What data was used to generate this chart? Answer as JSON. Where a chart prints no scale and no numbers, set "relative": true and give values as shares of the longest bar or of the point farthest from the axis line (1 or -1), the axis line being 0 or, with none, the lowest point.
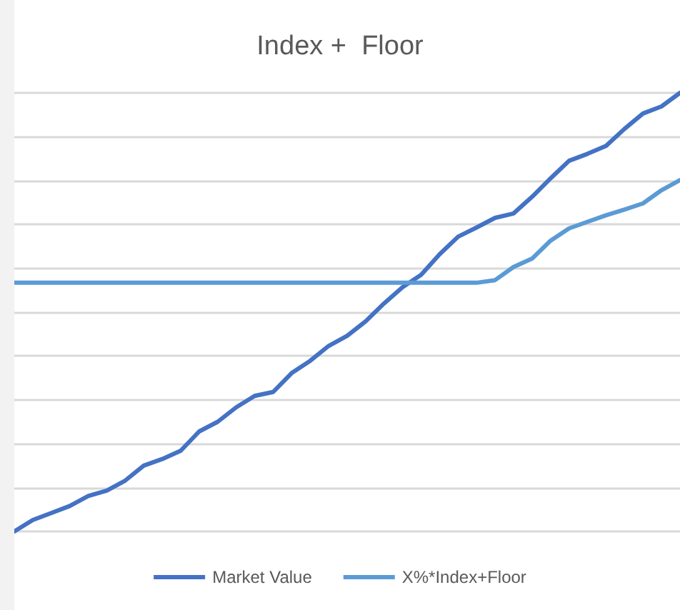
{
  "chart_data": {
    "type": "line",
    "title": "Index +  Floor",
    "relative": true,
    "grid": "y",
    "legend": "bottom",
    "marker": "none",
    "line_style": "solid",
    "categories": [
      null,
      null,
      null,
      null,
      null,
      null,
      null,
      null,
      null,
      null,
      null,
      null,
      null,
      null,
      null,
      null,
      null,
      null,
      null,
      null,
      null,
      null,
      null,
      null,
      null,
      null,
      null,
      null,
      null,
      null,
      null,
      null,
      null,
      null,
      null,
      null,
      null
    ],
    "series": [
      {
        "name": "Market Value",
        "color": "#4472c4",
        "values": [
          0,
          0.026,
          0.042,
          0.058,
          0.081,
          0.093,
          0.116,
          0.15,
          0.165,
          0.184,
          0.228,
          0.25,
          0.283,
          0.309,
          0.318,
          0.361,
          0.389,
          0.423,
          0.446,
          0.479,
          0.52,
          0.557,
          0.585,
          0.632,
          0.672,
          0.693,
          0.715,
          0.725,
          0.763,
          0.805,
          0.845,
          0.861,
          0.879,
          0.918,
          0.953,
          0.969,
          1
        ]
      },
      {
        "name": "X%*Index+Floor",
        "color": "#5b9bd5",
        "values": [
          0.567,
          0.567,
          0.567,
          0.567,
          0.567,
          0.567,
          0.567,
          0.567,
          0.567,
          0.567,
          0.567,
          0.567,
          0.567,
          0.567,
          0.567,
          0.567,
          0.567,
          0.567,
          0.567,
          0.567,
          0.567,
          0.567,
          0.567,
          0.567,
          0.567,
          0.567,
          0.573,
          0.603,
          0.622,
          0.663,
          0.691,
          0.706,
          0.721,
          0.734,
          0.748,
          0.778,
          0.801
        ]
      }
    ]
  }
}
